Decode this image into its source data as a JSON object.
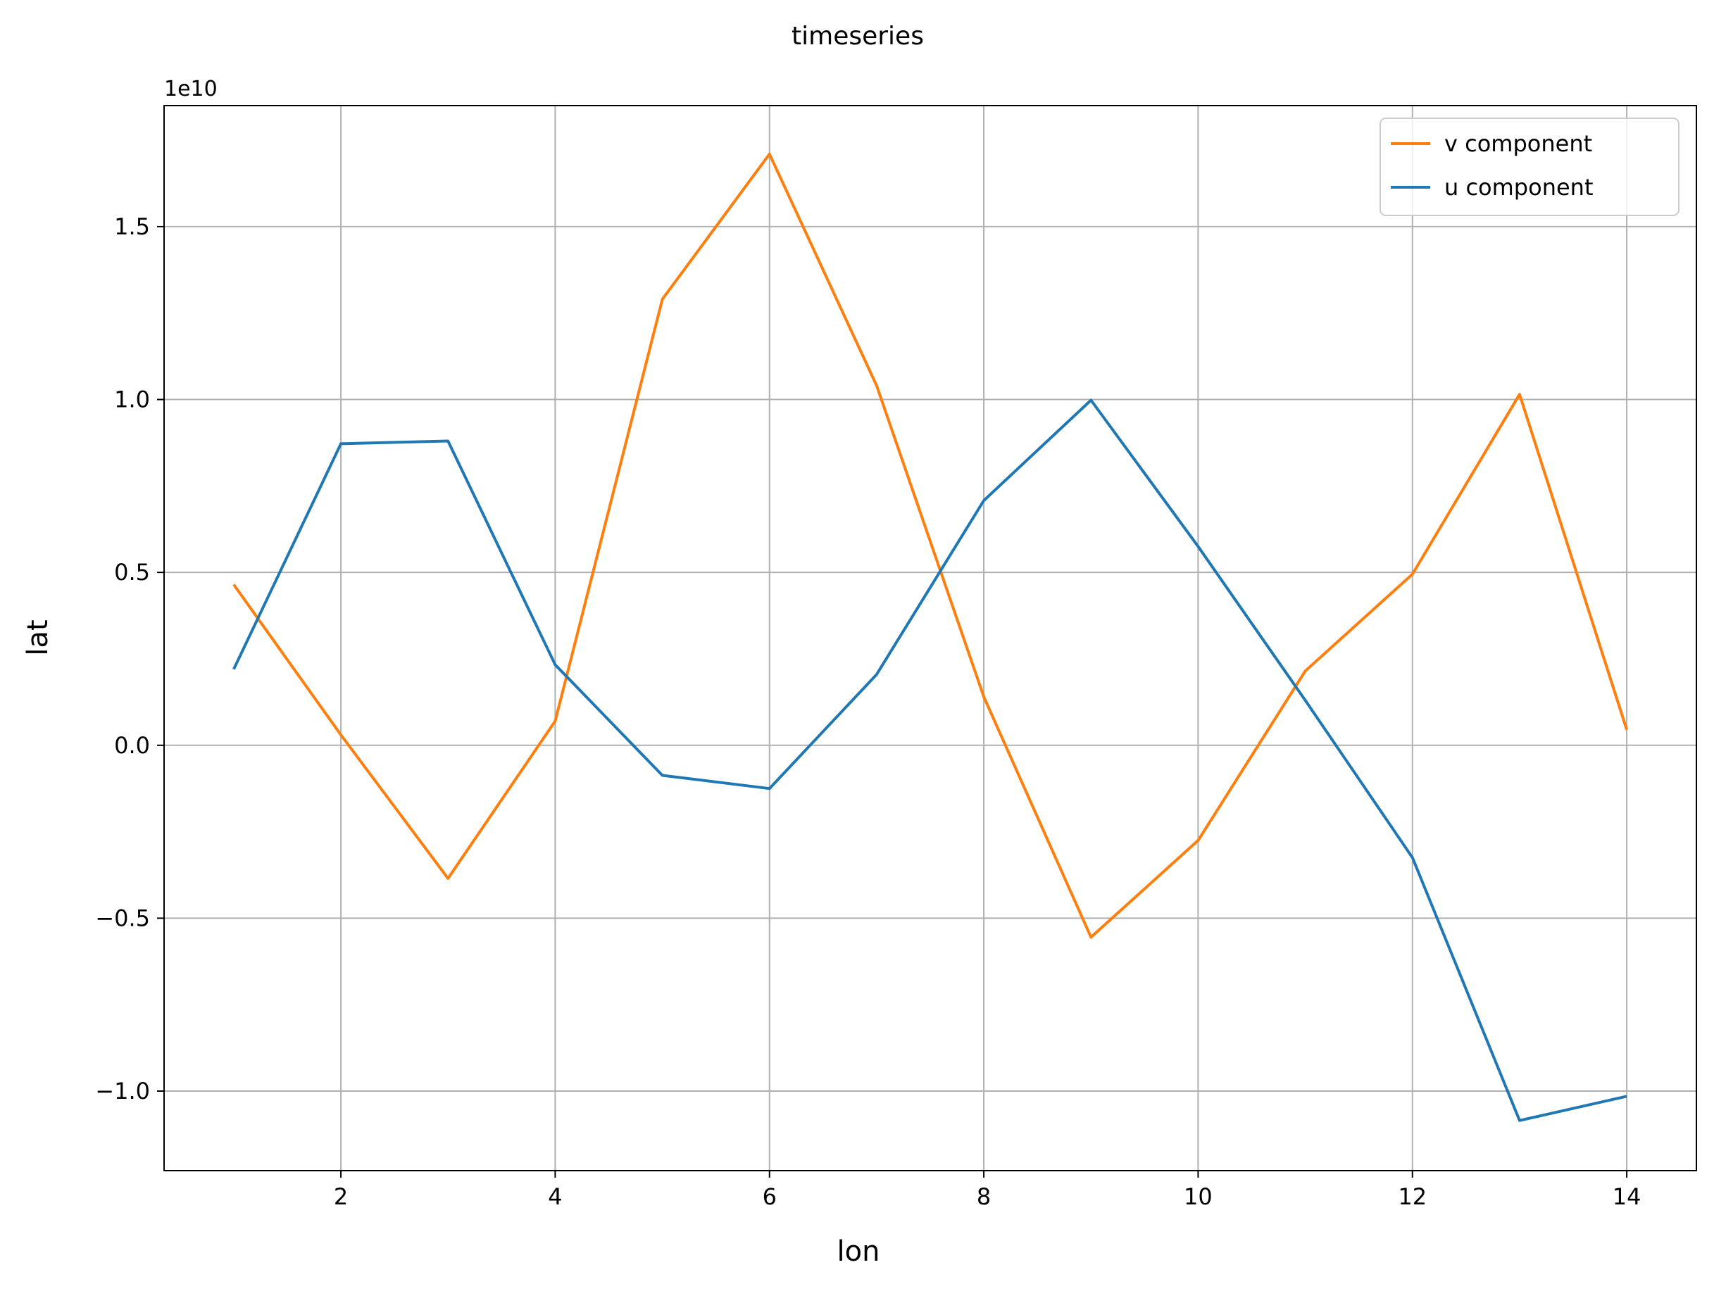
{
  "chart_data": {
    "type": "line",
    "title": "timeseries",
    "xlabel": "lon",
    "ylabel": "lat",
    "y_offset_label": "1e10",
    "xlim": [
      0.35,
      14.65
    ],
    "ylim": [
      -1.23,
      1.85
    ],
    "xticks": [
      2,
      4,
      6,
      8,
      10,
      12,
      14
    ],
    "xtick_labels": [
      "2",
      "4",
      "6",
      "8",
      "10",
      "12",
      "14"
    ],
    "yticks": [
      -1.0,
      -0.5,
      0.0,
      0.5,
      1.0,
      1.5
    ],
    "ytick_labels": [
      "−1.0",
      "−0.5",
      "0.0",
      "0.5",
      "1.0",
      "1.5"
    ],
    "grid": true,
    "legend_position": "top-right",
    "x": [
      1,
      2,
      3,
      4,
      5,
      6,
      7,
      8,
      9,
      10,
      11,
      12,
      13,
      14
    ],
    "series": [
      {
        "name": "v component",
        "color": "#ff7f0e",
        "values": [
          0.465,
          0.03,
          -0.385,
          0.07,
          1.29,
          1.71,
          1.04,
          0.14,
          -0.555,
          -0.275,
          0.215,
          0.495,
          1.015,
          0.045
        ]
      },
      {
        "name": "u component",
        "color": "#1f77b4",
        "values": [
          0.22,
          0.872,
          0.88,
          0.233,
          -0.087,
          -0.125,
          0.205,
          0.708,
          0.998,
          0.575,
          0.13,
          -0.325,
          -1.085,
          -1.015
        ]
      }
    ]
  }
}
